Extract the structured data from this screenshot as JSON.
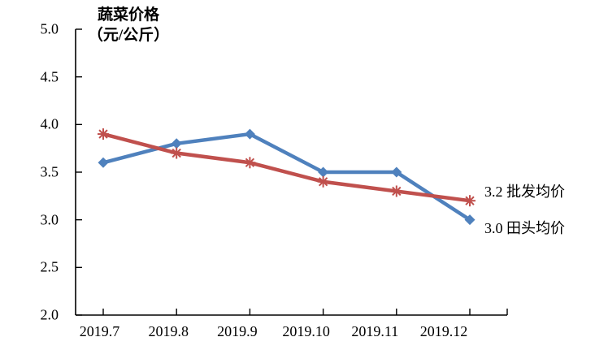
{
  "title": {
    "line1": "蔬菜价格",
    "line2": "（元/公斤）"
  },
  "colors": {
    "field_line": "#4F81BD",
    "wholesale_line": "#C0504D",
    "axis": "#000000",
    "text": "#000000",
    "background": "#FFFFFF"
  },
  "chart_data": {
    "type": "line",
    "title": "蔬菜价格（元/公斤）",
    "categories": [
      "2019.7",
      "2019.8",
      "2019.9",
      "2019.10",
      "2019.11",
      "2019.12"
    ],
    "series": [
      {
        "name": "田头均价",
        "color": "#4F81BD",
        "marker": "diamond",
        "values": [
          3.6,
          3.8,
          3.9,
          3.5,
          3.5,
          3.0
        ],
        "end_label": "3.0 田头均价",
        "last_value_label": "3.0"
      },
      {
        "name": "批发均价",
        "color": "#C0504D",
        "marker": "asterisk",
        "values": [
          3.9,
          3.7,
          3.6,
          3.4,
          3.3,
          3.2
        ],
        "end_label": "3.2 批发均价",
        "last_value_label": "3.2"
      }
    ],
    "xlabel": "",
    "ylabel": "元/公斤",
    "ylim": [
      2.0,
      5.0
    ],
    "ytick_step": 0.5,
    "yticks": [
      "5.0",
      "4.5",
      "4.0",
      "3.5",
      "3.0",
      "2.5",
      "2.0"
    ],
    "grid": false,
    "legend_position": "line-end-labels"
  }
}
